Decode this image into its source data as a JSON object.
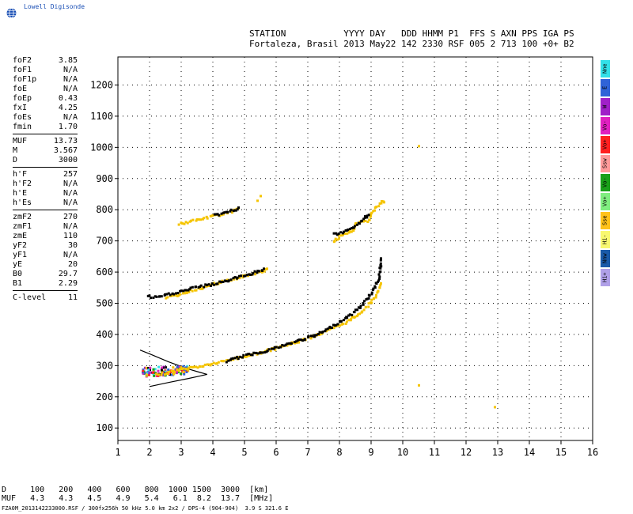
{
  "logo": {
    "text": "Lowell Digisonde",
    "icon": "globe-icon"
  },
  "header": {
    "line1": [
      "STATION",
      "YYYY DAY",
      "DDD HHMM P1",
      "FFS S AXN PPS IGA PS"
    ],
    "line2": "Fortaleza, Brasil 2013 May22 142 2330 RSF 005 2 713 100 +0+ B2"
  },
  "params": {
    "group1": [
      {
        "k": "foF2",
        "v": "3.85"
      },
      {
        "k": "foF1",
        "v": "N/A"
      },
      {
        "k": "foF1p",
        "v": "N/A"
      },
      {
        "k": "foE",
        "v": "N/A"
      },
      {
        "k": "foEp",
        "v": "0.43"
      },
      {
        "k": "fxI",
        "v": "4.25"
      },
      {
        "k": "foEs",
        "v": "N/A"
      },
      {
        "k": "fmin",
        "v": "1.70"
      }
    ],
    "group2": [
      {
        "k": "MUF",
        "v": "13.73"
      },
      {
        "k": "M",
        "v": "3.567"
      },
      {
        "k": "D",
        "v": "3000"
      }
    ],
    "group3": [
      {
        "k": "h'F",
        "v": "257"
      },
      {
        "k": "h'F2",
        "v": "N/A"
      },
      {
        "k": "h'E",
        "v": "N/A"
      },
      {
        "k": "h'Es",
        "v": "N/A"
      }
    ],
    "group4": [
      {
        "k": "zmF2",
        "v": "270"
      },
      {
        "k": "zmF1",
        "v": "N/A"
      },
      {
        "k": "zmE",
        "v": "110"
      },
      {
        "k": "yF2",
        "v": "30"
      },
      {
        "k": "yF1",
        "v": "N/A"
      },
      {
        "k": "yE",
        "v": "20"
      },
      {
        "k": "B0",
        "v": "29.7"
      },
      {
        "k": "B1",
        "v": "2.29"
      }
    ],
    "group5": [
      {
        "k": "C-level",
        "v": "11"
      }
    ]
  },
  "legend": [
    {
      "label": "Nne",
      "color": "#33e0e8"
    },
    {
      "label": "E",
      "color": "#2f63d8"
    },
    {
      "label": "W",
      "color": "#a020c8"
    },
    {
      "label": "Vo-",
      "color": "#e020c0"
    },
    {
      "label": "Vo+",
      "color": "#ff2020"
    },
    {
      "label": "Ssw",
      "color": "#ff9a9a"
    },
    {
      "label": "Vo-",
      "color": "#1aa01a"
    },
    {
      "label": "Vo+",
      "color": "#80ee80"
    },
    {
      "label": "Sse",
      "color": "#ffc21a"
    },
    {
      "label": "Hi-",
      "color": "#f8f870"
    },
    {
      "label": "Nnw",
      "color": "#1a5aa8"
    },
    {
      "label": "Hi+",
      "color": "#b0a0e8"
    }
  ],
  "chart_data": {
    "type": "scatter",
    "x_ticks": [
      1,
      2,
      3,
      4,
      5,
      6,
      7,
      8,
      9,
      10,
      11,
      12,
      13,
      14,
      15,
      16
    ],
    "y_ticks": [
      100,
      200,
      300,
      400,
      500,
      600,
      700,
      800,
      900,
      1000,
      1100,
      1200
    ],
    "xlim": [
      1,
      16
    ],
    "ylim": [
      60,
      1290
    ],
    "grid": true,
    "colors": {
      "echo_o": "#f5c400",
      "echo_x": "#000000",
      "profile": "#000000"
    },
    "profile": [
      [
        2.0,
        233
      ],
      [
        2.6,
        246
      ],
      [
        3.2,
        258
      ],
      [
        3.6,
        267
      ],
      [
        3.82,
        272
      ],
      [
        3.6,
        278
      ],
      [
        3.2,
        290
      ],
      [
        2.6,
        312
      ],
      [
        2.0,
        338
      ],
      [
        1.7,
        350
      ]
    ],
    "traces": [
      {
        "name": "o-F2",
        "color": "#f5c400",
        "points": [
          [
            2.2,
            275
          ],
          [
            2.6,
            282
          ],
          [
            3.0,
            292
          ],
          [
            3.5,
            300
          ],
          [
            4.0,
            310
          ],
          [
            4.5,
            322
          ],
          [
            5.0,
            334
          ],
          [
            5.5,
            346
          ],
          [
            6.0,
            360
          ],
          [
            6.5,
            376
          ],
          [
            7.0,
            393
          ],
          [
            7.5,
            412
          ],
          [
            8.0,
            433
          ],
          [
            8.3,
            450
          ],
          [
            8.6,
            472
          ],
          [
            8.9,
            500
          ],
          [
            9.1,
            525
          ],
          [
            9.3,
            565
          ]
        ]
      },
      {
        "name": "x-F2",
        "color": "#000000",
        "points": [
          [
            4.4,
            318
          ],
          [
            5.0,
            336
          ],
          [
            5.6,
            350
          ],
          [
            6.2,
            368
          ],
          [
            6.8,
            388
          ],
          [
            7.2,
            400
          ],
          [
            7.6,
            420
          ],
          [
            8.0,
            446
          ],
          [
            8.4,
            472
          ],
          [
            8.7,
            500
          ],
          [
            9.0,
            540
          ],
          [
            9.2,
            580
          ],
          [
            9.3,
            645
          ]
        ]
      },
      {
        "name": "2F-o",
        "color": "#f5c400",
        "points": [
          [
            2.5,
            520
          ],
          [
            3.0,
            535
          ],
          [
            3.5,
            550
          ],
          [
            4.0,
            565
          ],
          [
            4.5,
            578
          ],
          [
            5.0,
            592
          ],
          [
            5.4,
            602
          ],
          [
            5.7,
            612
          ]
        ]
      },
      {
        "name": "2F-x",
        "color": "#000000",
        "points": [
          [
            1.9,
            525
          ],
          [
            2.2,
            522
          ],
          [
            3.5,
            556
          ],
          [
            4.0,
            565
          ],
          [
            4.6,
            582
          ],
          [
            5.2,
            600
          ],
          [
            5.6,
            612
          ]
        ]
      },
      {
        "name": "3F-o",
        "color": "#f5c400",
        "points": [
          [
            2.9,
            758
          ],
          [
            3.3,
            766
          ],
          [
            3.7,
            776
          ],
          [
            4.1,
            786
          ],
          [
            4.5,
            796
          ],
          [
            4.8,
            806
          ]
        ]
      },
      {
        "name": "3F-x",
        "color": "#000000",
        "points": [
          [
            4.0,
            785
          ],
          [
            4.4,
            795
          ],
          [
            4.8,
            808
          ]
        ]
      },
      {
        "name": "multi-o",
        "color": "#f5c400",
        "points": [
          [
            7.8,
            700
          ],
          [
            7.9,
            710
          ],
          [
            8.0,
            720
          ],
          [
            8.4,
            735
          ],
          [
            8.5,
            760
          ],
          [
            8.9,
            770
          ],
          [
            9.0,
            795
          ],
          [
            9.3,
            830
          ],
          [
            9.4,
            825
          ]
        ]
      },
      {
        "name": "multi-x",
        "color": "#000000",
        "points": [
          [
            7.8,
            728
          ],
          [
            7.9,
            722
          ],
          [
            8.0,
            730
          ],
          [
            8.4,
            745
          ],
          [
            8.5,
            755
          ],
          [
            8.9,
            785
          ],
          [
            8.8,
            780
          ]
        ]
      },
      {
        "name": "isolated",
        "color": "#f5c400",
        "points": [
          [
            10.5,
            238
          ],
          [
            12.9,
            168
          ],
          [
            10.5,
            1005
          ],
          [
            5.4,
            830
          ],
          [
            5.5,
            845
          ]
        ]
      }
    ]
  },
  "muf_table": {
    "d_label": "D",
    "d_values": [
      "100",
      "200",
      "400",
      "600",
      "800",
      "1000",
      "1500",
      "3000"
    ],
    "d_unit": "[km]",
    "muf_label": "MUF",
    "muf_values": [
      "4.3",
      "4.3",
      "4.5",
      "4.9",
      "5.4",
      "6.1",
      "8.2",
      "13.7"
    ],
    "muf_unit": "[MHz]"
  },
  "footer": "FZA0M_2013142233000.RSF / 300fx256h 50 kHz 5.0 km 2x2 / DPS-4 (904-904)  3.9 S 321.6 E"
}
